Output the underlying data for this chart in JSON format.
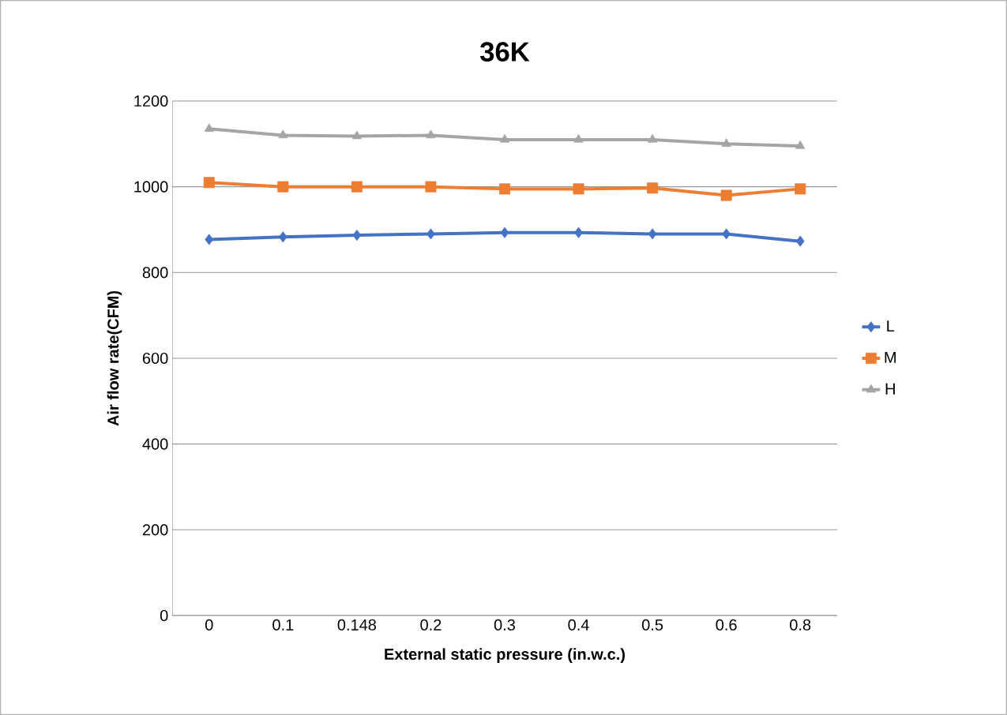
{
  "chart_data": {
    "type": "line",
    "title": "36K",
    "xlabel": "External static pressure (in.w.c.)",
    "ylabel": "Air flow rate(CFM)",
    "categories": [
      "0",
      "0.1",
      "0.148",
      "0.2",
      "0.3",
      "0.4",
      "0.5",
      "0.6",
      "0.8"
    ],
    "series": [
      {
        "name": "L",
        "color": "#4472c4",
        "marker": "diamond",
        "values": [
          877,
          883,
          887,
          890,
          893,
          893,
          890,
          890,
          873
        ]
      },
      {
        "name": "M",
        "color": "#ed7d31",
        "marker": "square",
        "values": [
          1010,
          1000,
          1000,
          1000,
          995,
          995,
          997,
          980,
          995
        ]
      },
      {
        "name": "H",
        "color": "#a5a5a5",
        "marker": "triangle",
        "values": [
          1135,
          1120,
          1118,
          1120,
          1110,
          1110,
          1110,
          1100,
          1095
        ]
      }
    ],
    "ylim": [
      0,
      1200
    ],
    "yticks": [
      0,
      200,
      400,
      600,
      800,
      1000,
      1200
    ],
    "grid": "y",
    "legend": "right"
  }
}
